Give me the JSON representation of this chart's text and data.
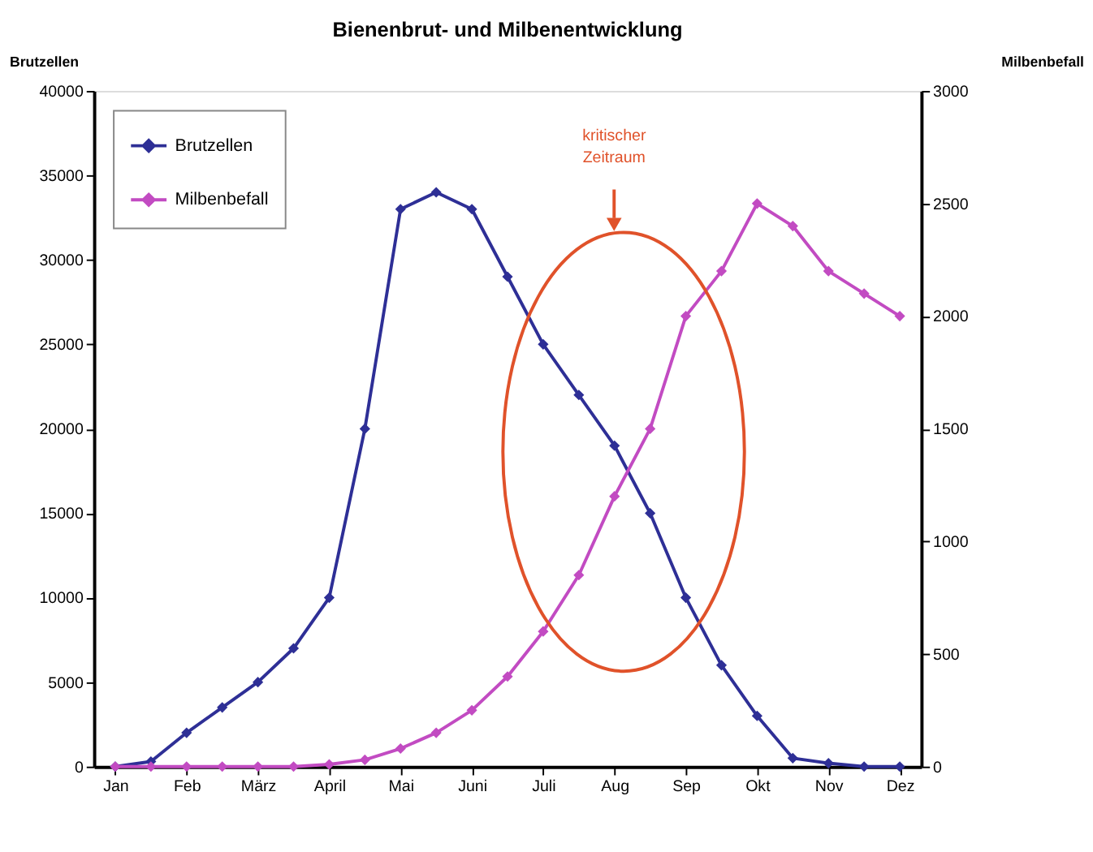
{
  "chart_data": {
    "type": "line",
    "title": "Bienenbrut- und Milbenentwicklung",
    "categories": [
      "Jan",
      null,
      "Feb",
      null,
      "März",
      null,
      "April",
      null,
      "Mai",
      null,
      "Juni",
      null,
      "Juli",
      null,
      "Aug",
      null,
      "Sep",
      null,
      "Okt",
      null,
      "Nov",
      null,
      "Dez"
    ],
    "series": [
      {
        "name": "Brutzellen",
        "color": "#2e2f96",
        "values": [
          0,
          300,
          2000,
          3500,
          5000,
          7000,
          10000,
          20000,
          33000,
          34000,
          33000,
          29000,
          25000,
          22000,
          19000,
          15000,
          10000,
          6000,
          3000,
          500,
          200,
          0,
          0
        ]
      },
      {
        "name": "Milbenbefall",
        "color": "#c24bc2",
        "axis": "y2",
        "values": [
          0,
          0,
          0,
          0,
          0,
          0,
          10,
          30,
          80,
          150,
          250,
          400,
          600,
          850,
          1200,
          1500,
          2000,
          2200,
          2500,
          2400,
          2200,
          2100,
          2000
        ]
      }
    ],
    "ylabel": "Brutzellen",
    "y2label": "Milbenbefall",
    "ylim": [
      0,
      40000
    ],
    "yticks": [
      0,
      5000,
      10000,
      15000,
      20000,
      25000,
      30000,
      35000,
      40000
    ],
    "y2lim": [
      0,
      3000
    ],
    "y2ticks": [
      0,
      500,
      1000,
      1500,
      2000,
      2500,
      3000
    ],
    "annotations": [
      "kritischer Zeitraum"
    ],
    "marker": "diamond",
    "line_style": "solid",
    "grid": false,
    "legend": "top left"
  }
}
